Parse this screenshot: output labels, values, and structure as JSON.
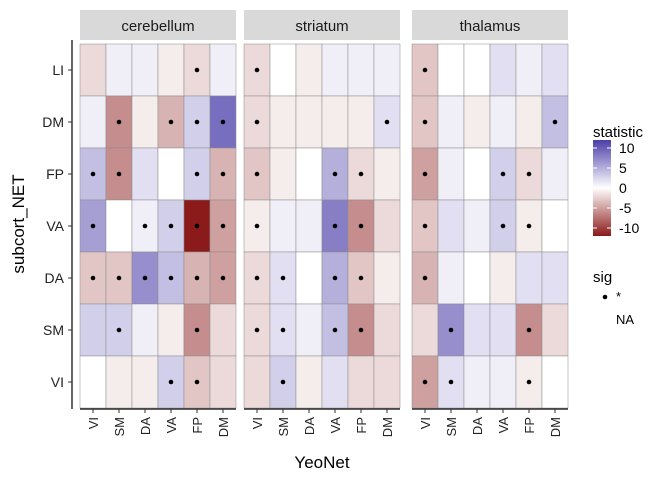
{
  "chart_data": {
    "type": "heatmap",
    "xlabel": "YeoNet",
    "ylabel": "subcort_NET",
    "facets": [
      "cerebellum",
      "striatum",
      "thalamus"
    ],
    "x_categories": [
      "VI",
      "SM",
      "DA",
      "VA",
      "FP",
      "DM"
    ],
    "y_categories": [
      "LI",
      "DM",
      "FP",
      "VA",
      "DA",
      "SM",
      "VI"
    ],
    "legend": {
      "fill_title": "statistic",
      "fill_ticks": [
        10,
        5,
        0,
        -5,
        -10
      ],
      "fill_range": [
        -12,
        12
      ],
      "color_low": "#8b1a1a",
      "color_mid": "#ffffff",
      "color_high": "#4b3ea9",
      "sig_title": "sig",
      "sig_entries": [
        "*",
        "NA"
      ]
    },
    "panels": [
      {
        "facet": "cerebellum",
        "values": [
          [
            -2,
            1,
            1,
            -1,
            -2,
            1
          ],
          [
            1,
            -6,
            -1,
            -4,
            3,
            9
          ],
          [
            4,
            -6,
            2,
            0,
            3,
            -4
          ],
          [
            6,
            0,
            1,
            3,
            -12,
            -5
          ],
          [
            -3,
            -3,
            7,
            4,
            -4,
            -5
          ],
          [
            3,
            3,
            1,
            -1,
            -6,
            -2
          ],
          [
            0,
            -1,
            -1,
            3,
            -3,
            -2
          ]
        ],
        "sig": [
          [
            0,
            0,
            0,
            0,
            1,
            0
          ],
          [
            0,
            1,
            0,
            1,
            1,
            1
          ],
          [
            1,
            1,
            0,
            0,
            1,
            1
          ],
          [
            1,
            0,
            1,
            1,
            1,
            1
          ],
          [
            1,
            1,
            1,
            1,
            1,
            1
          ],
          [
            0,
            1,
            0,
            0,
            1,
            0
          ],
          [
            0,
            0,
            0,
            1,
            1,
            0
          ]
        ]
      },
      {
        "facet": "striatum",
        "values": [
          [
            -2,
            0,
            -1,
            1,
            1,
            1
          ],
          [
            -2,
            -1,
            -1,
            -1,
            -1,
            2
          ],
          [
            -3,
            -1,
            0,
            5,
            -2,
            -1
          ],
          [
            -1,
            1,
            1,
            8,
            -6,
            -2
          ],
          [
            -2,
            2,
            0,
            5,
            -3,
            -1
          ],
          [
            -2,
            2,
            1,
            4,
            -6,
            -2
          ],
          [
            -2,
            3,
            -1,
            2,
            -2,
            -2
          ]
        ],
        "sig": [
          [
            1,
            0,
            0,
            0,
            0,
            0
          ],
          [
            1,
            0,
            0,
            0,
            0,
            1
          ],
          [
            1,
            0,
            0,
            1,
            1,
            0
          ],
          [
            1,
            0,
            0,
            1,
            1,
            0
          ],
          [
            1,
            1,
            0,
            1,
            1,
            0
          ],
          [
            1,
            1,
            0,
            1,
            1,
            0
          ],
          [
            0,
            1,
            0,
            0,
            0,
            0
          ]
        ]
      },
      {
        "facet": "thalamus",
        "values": [
          [
            -3,
            0,
            0,
            2,
            1,
            2
          ],
          [
            -3,
            1,
            -1,
            1,
            -1,
            4
          ],
          [
            -5,
            1,
            0,
            3,
            -2,
            1
          ],
          [
            -3,
            2,
            1,
            3,
            -1,
            0
          ],
          [
            -4,
            1,
            0,
            -1,
            2,
            2
          ],
          [
            -2,
            7,
            2,
            2,
            -6,
            -2
          ],
          [
            -5,
            2,
            1,
            1,
            -1,
            0
          ]
        ],
        "sig": [
          [
            1,
            0,
            0,
            0,
            0,
            0
          ],
          [
            1,
            0,
            0,
            0,
            0,
            1
          ],
          [
            1,
            0,
            0,
            1,
            1,
            0
          ],
          [
            1,
            0,
            0,
            1,
            1,
            0
          ],
          [
            1,
            0,
            0,
            0,
            0,
            0
          ],
          [
            0,
            1,
            0,
            0,
            1,
            0
          ],
          [
            1,
            1,
            0,
            0,
            1,
            0
          ]
        ]
      }
    ]
  }
}
